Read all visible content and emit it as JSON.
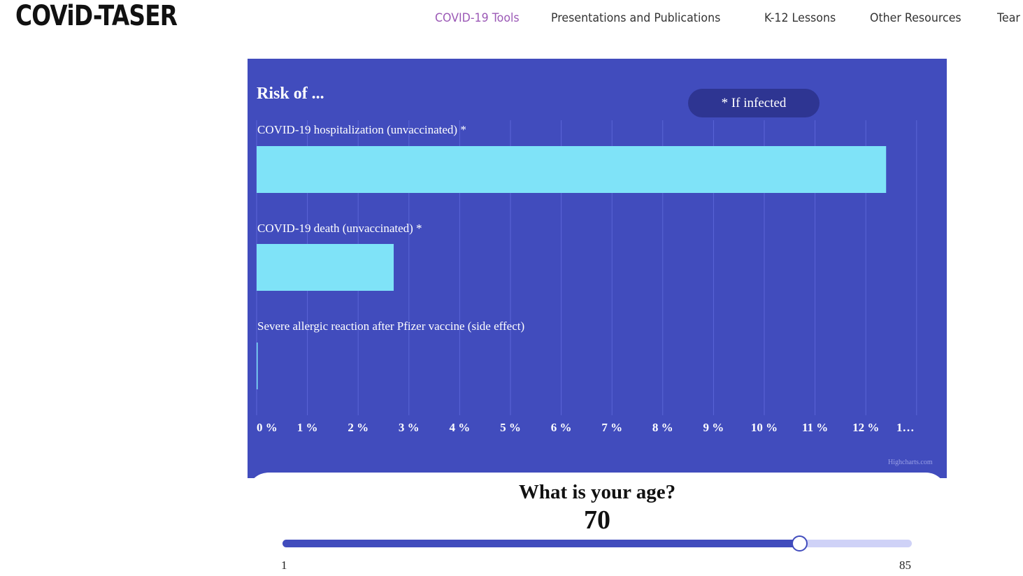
{
  "header": {
    "logo": "COViD-TASER",
    "nav": [
      {
        "label": "COVID-19 Tools",
        "active": true
      },
      {
        "label": "Presentations and Publications",
        "active": false
      },
      {
        "label": "K-12 Lessons",
        "active": false
      },
      {
        "label": "Other Resources",
        "active": false
      },
      {
        "label": "Tear",
        "active": false
      }
    ]
  },
  "chart": {
    "title": "Risk of ...",
    "pill": "* If infected",
    "credit": "Highcharts.com"
  },
  "chart_data": {
    "type": "bar",
    "orientation": "horizontal",
    "title": "Risk of ...",
    "categories": [
      "COVID-19 hospitalization (unvaccinated) *",
      "COVID-19 death (unvaccinated) *",
      "Severe allergic reaction after Pfizer vaccine (side effect)"
    ],
    "values": [
      12.4,
      2.7,
      0.01
    ],
    "unit": "%",
    "xlim": [
      0,
      13
    ],
    "ticks": [
      "0 %",
      "1 %",
      "2 %",
      "3 %",
      "4 %",
      "5 %",
      "6 %",
      "7 %",
      "8 %",
      "9 %",
      "10 %",
      "11 %",
      "12 %",
      "1…"
    ],
    "grid": true,
    "colors": {
      "bar": "#7fe3f8",
      "background": "#414cbd",
      "grid": "#5a65d6"
    }
  },
  "age": {
    "question": "What is your age?",
    "value": 70,
    "min": 1,
    "max": 85
  }
}
